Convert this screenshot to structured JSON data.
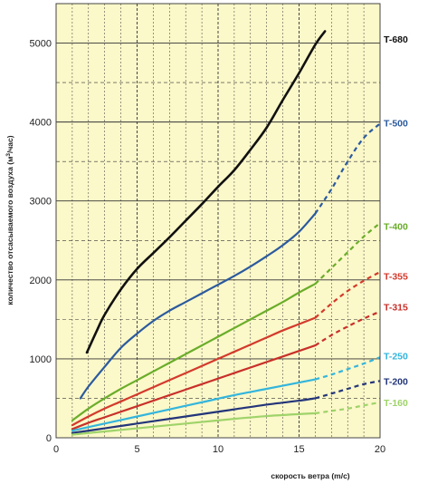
{
  "chart_data": {
    "type": "line",
    "xlabel": "скорость ветра (m/c)",
    "ylabel_main": "количество отсасываемого воздуха (м",
    "ylabel_sup": "3",
    "ylabel_tail": "/час)",
    "xlim": [
      0,
      20
    ],
    "ylim": [
      0,
      5500
    ],
    "xticks": [
      0,
      5,
      10,
      15,
      20
    ],
    "yticks": [
      0,
      1000,
      2000,
      3000,
      4000,
      5000
    ],
    "grid": true,
    "background_color": "#fbf8c9",
    "grid_color": "#333333",
    "series": [
      {
        "name": "T-680",
        "color": "#111111",
        "solid": [
          [
            1.9,
            1080
          ],
          [
            2.5,
            1350
          ],
          [
            3,
            1560
          ],
          [
            4,
            1880
          ],
          [
            5,
            2140
          ],
          [
            6,
            2340
          ],
          [
            7,
            2540
          ],
          [
            8,
            2750
          ],
          [
            9,
            2960
          ],
          [
            10,
            3180
          ],
          [
            11,
            3390
          ],
          [
            12,
            3650
          ],
          [
            13,
            3930
          ],
          [
            14,
            4280
          ],
          [
            15,
            4620
          ],
          [
            16,
            4980
          ],
          [
            16.6,
            5150
          ]
        ],
        "dashed": []
      },
      {
        "name": "T-500",
        "color": "#2b5a9e",
        "solid": [
          [
            1.5,
            500
          ],
          [
            2,
            650
          ],
          [
            3,
            900
          ],
          [
            4,
            1140
          ],
          [
            5,
            1320
          ],
          [
            6,
            1480
          ],
          [
            7,
            1610
          ],
          [
            8,
            1720
          ],
          [
            9,
            1830
          ],
          [
            10,
            1940
          ],
          [
            11,
            2050
          ],
          [
            12,
            2170
          ],
          [
            13,
            2300
          ],
          [
            14,
            2440
          ],
          [
            15,
            2610
          ],
          [
            16,
            2840
          ]
        ],
        "dashed": [
          [
            16,
            2840
          ],
          [
            17,
            3150
          ],
          [
            18,
            3500
          ],
          [
            19,
            3800
          ],
          [
            20,
            3980
          ]
        ]
      },
      {
        "name": "T-400",
        "color": "#6aad2a",
        "solid": [
          [
            1,
            220
          ],
          [
            2,
            370
          ],
          [
            3,
            500
          ],
          [
            4,
            620
          ],
          [
            5,
            730
          ],
          [
            6,
            840
          ],
          [
            7,
            950
          ],
          [
            8,
            1060
          ],
          [
            9,
            1170
          ],
          [
            10,
            1280
          ],
          [
            11,
            1390
          ],
          [
            12,
            1500
          ],
          [
            13,
            1610
          ],
          [
            14,
            1720
          ],
          [
            15,
            1840
          ],
          [
            16,
            1950
          ]
        ],
        "dashed": [
          [
            16,
            1950
          ],
          [
            17,
            2150
          ],
          [
            18,
            2350
          ],
          [
            19,
            2550
          ],
          [
            20,
            2720
          ]
        ]
      },
      {
        "name": "T-355",
        "color": "#d33a2c",
        "solid": [
          [
            1,
            160
          ],
          [
            2,
            270
          ],
          [
            3,
            370
          ],
          [
            4,
            460
          ],
          [
            5,
            550
          ],
          [
            6,
            640
          ],
          [
            7,
            730
          ],
          [
            8,
            820
          ],
          [
            9,
            910
          ],
          [
            10,
            1000
          ],
          [
            11,
            1090
          ],
          [
            12,
            1180
          ],
          [
            13,
            1270
          ],
          [
            14,
            1360
          ],
          [
            15,
            1440
          ],
          [
            16,
            1520
          ]
        ],
        "dashed": [
          [
            16,
            1520
          ],
          [
            17,
            1700
          ],
          [
            18,
            1860
          ],
          [
            19,
            1990
          ],
          [
            20,
            2100
          ]
        ]
      },
      {
        "name": "T-315",
        "color": "#c8302a",
        "solid": [
          [
            1,
            110
          ],
          [
            2,
            190
          ],
          [
            3,
            260
          ],
          [
            4,
            330
          ],
          [
            5,
            400
          ],
          [
            6,
            470
          ],
          [
            7,
            540
          ],
          [
            8,
            610
          ],
          [
            9,
            680
          ],
          [
            10,
            750
          ],
          [
            11,
            820
          ],
          [
            12,
            890
          ],
          [
            13,
            960
          ],
          [
            14,
            1030
          ],
          [
            15,
            1100
          ],
          [
            16,
            1170
          ]
        ],
        "dashed": [
          [
            16,
            1170
          ],
          [
            17,
            1300
          ],
          [
            18,
            1410
          ],
          [
            19,
            1510
          ],
          [
            20,
            1600
          ]
        ]
      },
      {
        "name": "T-250",
        "color": "#33b5dc",
        "solid": [
          [
            1,
            90
          ],
          [
            3,
            180
          ],
          [
            5,
            270
          ],
          [
            7,
            360
          ],
          [
            9,
            450
          ],
          [
            11,
            540
          ],
          [
            13,
            620
          ],
          [
            15,
            700
          ],
          [
            16,
            740
          ]
        ],
        "dashed": [
          [
            16,
            740
          ],
          [
            17,
            800
          ],
          [
            18,
            870
          ],
          [
            19,
            940
          ],
          [
            20,
            1020
          ]
        ]
      },
      {
        "name": "T-200",
        "color": "#23357a",
        "solid": [
          [
            1,
            60
          ],
          [
            3,
            120
          ],
          [
            5,
            180
          ],
          [
            7,
            240
          ],
          [
            9,
            300
          ],
          [
            11,
            360
          ],
          [
            13,
            420
          ],
          [
            15,
            470
          ],
          [
            16,
            500
          ]
        ],
        "dashed": [
          [
            16,
            500
          ],
          [
            17,
            560
          ],
          [
            18,
            620
          ],
          [
            19,
            680
          ],
          [
            20,
            720
          ]
        ]
      },
      {
        "name": "T-160",
        "color": "#9fd36a",
        "solid": [
          [
            1,
            40
          ],
          [
            3,
            80
          ],
          [
            5,
            120
          ],
          [
            7,
            160
          ],
          [
            9,
            200
          ],
          [
            11,
            240
          ],
          [
            13,
            275
          ],
          [
            15,
            300
          ],
          [
            16,
            310
          ]
        ],
        "dashed": [
          [
            16,
            310
          ],
          [
            17,
            340
          ],
          [
            18,
            370
          ],
          [
            19,
            410
          ],
          [
            20,
            450
          ]
        ]
      }
    ],
    "labels": [
      {
        "text": "T-680",
        "color": "#111111",
        "y": 5050
      },
      {
        "text": "T-500",
        "color": "#2b5a9e",
        "y": 3990
      },
      {
        "text": "T-400",
        "color": "#6aad2a",
        "y": 2680
      },
      {
        "text": "T-355",
        "color": "#d33a2c",
        "y": 2050
      },
      {
        "text": "T-315",
        "color": "#c8302a",
        "y": 1660
      },
      {
        "text": "T-250",
        "color": "#33b5dc",
        "y": 1040
      },
      {
        "text": "T-200",
        "color": "#23357a",
        "y": 720
      },
      {
        "text": "T-160",
        "color": "#9fd36a",
        "y": 450
      }
    ]
  }
}
